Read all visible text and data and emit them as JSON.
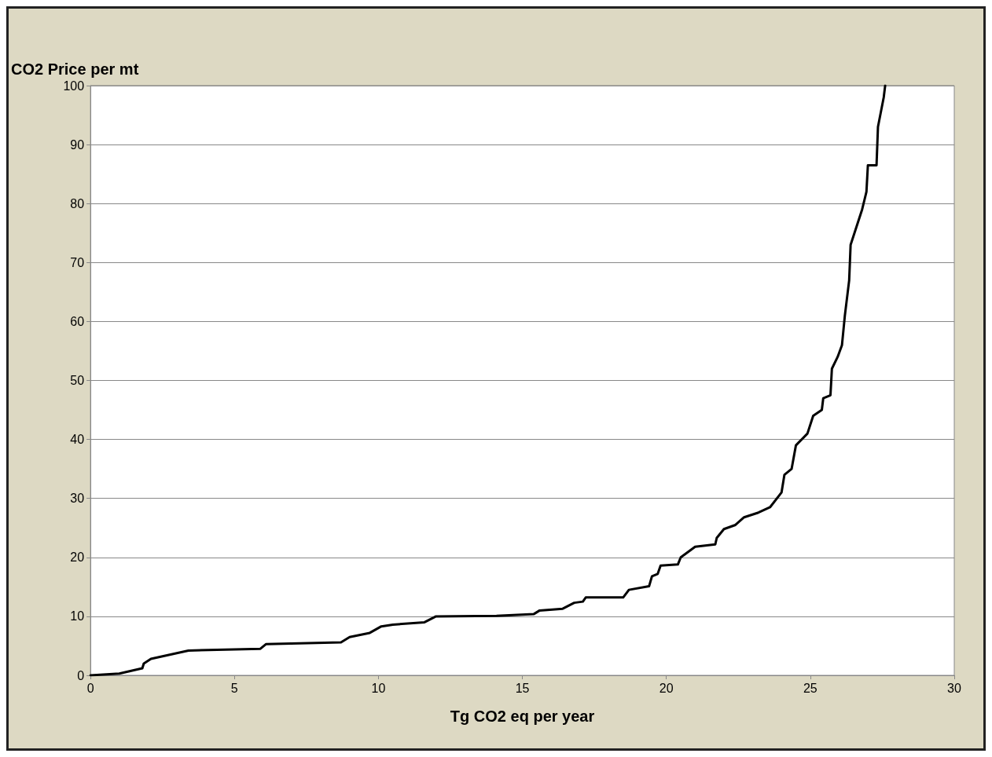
{
  "chart_data": {
    "type": "line",
    "xlabel": "Tg CO2 eq per year",
    "ylabel": "CO2 Price per mt",
    "xlim": [
      0,
      30
    ],
    "xticks": [
      0,
      5,
      10,
      15,
      20,
      25,
      30
    ],
    "ylim": [
      0,
      100
    ],
    "yticks": [
      0,
      10,
      20,
      30,
      40,
      50,
      60,
      70,
      80,
      90,
      100
    ],
    "grid": "y",
    "marker": "none",
    "line_style": "solid",
    "series": [
      {
        "color": "#000000",
        "x": [
          0,
          1.0,
          1.8,
          1.85,
          2.1,
          3.4,
          5.9,
          6.1,
          8.7,
          9.0,
          9.7,
          10.1,
          10.5,
          11.6,
          12.0,
          14.1,
          15.4,
          15.6,
          16.4,
          16.8,
          17.1,
          17.2,
          18.5,
          18.7,
          19.4,
          19.5,
          19.7,
          19.8,
          20.4,
          20.5,
          21.0,
          21.7,
          21.75,
          22.0,
          22.4,
          22.7,
          23.2,
          23.6,
          24.0,
          24.1,
          24.35,
          24.5,
          24.9,
          25.1,
          25.4,
          25.45,
          25.7,
          25.75,
          25.95,
          26.1,
          26.2,
          26.35,
          26.4,
          26.6,
          26.8,
          26.95,
          27.0,
          27.3,
          27.35,
          27.55,
          27.6
        ],
        "values": [
          0,
          0.3,
          1.2,
          2,
          2.8,
          4.2,
          4.5,
          5.3,
          5.6,
          6.5,
          7.2,
          8.3,
          8.6,
          9,
          10,
          10.1,
          10.4,
          11,
          11.3,
          12.3,
          12.5,
          13.2,
          13.2,
          14.5,
          15.1,
          16.8,
          17.2,
          18.6,
          18.8,
          20,
          21.8,
          22.2,
          23.3,
          24.8,
          25.5,
          26.8,
          27.6,
          28.5,
          31,
          34,
          35,
          39,
          41,
          44,
          45,
          47,
          47.5,
          52,
          54,
          56,
          61,
          67,
          73,
          76,
          79,
          82,
          86.5,
          86.5,
          93,
          98,
          100
        ]
      }
    ]
  }
}
